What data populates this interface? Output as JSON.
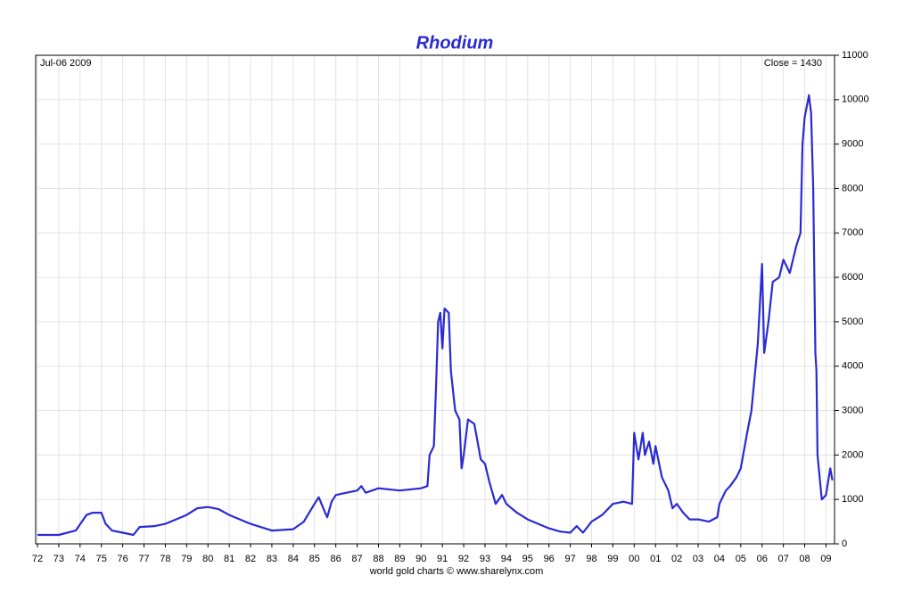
{
  "chart_data": {
    "type": "line",
    "title": "Rhodium",
    "date_label": "Jul-06 2009",
    "close_label": "Close = 1430",
    "footer": "world gold charts © www.sharelynx.com",
    "x": [
      1972,
      1973,
      1973.8,
      1974.3,
      1974.6,
      1975,
      1975.2,
      1975.5,
      1976,
      1976.5,
      1976.8,
      1977.5,
      1978,
      1978.5,
      1979,
      1979.5,
      1980,
      1980.5,
      1981,
      1982,
      1983,
      1984,
      1984.5,
      1985,
      1985.2,
      1985.5,
      1985.6,
      1985.8,
      1986,
      1986.5,
      1987,
      1987.2,
      1987.4,
      1988,
      1989,
      1990,
      1990.3,
      1990.4,
      1990.6,
      1990.7,
      1990.8,
      1990.9,
      1991,
      1991.1,
      1991.3,
      1991.4,
      1991.6,
      1991.8,
      1991.9,
      1992,
      1992.2,
      1992.5,
      1992.8,
      1993,
      1993.2,
      1993.5,
      1993.8,
      1994,
      1994.5,
      1995,
      1995.5,
      1996,
      1996.5,
      1997,
      1997.3,
      1997.6,
      1998,
      1998.5,
      1999,
      1999.5,
      1999.9,
      2000,
      2000.2,
      2000.4,
      2000.5,
      2000.7,
      2000.9,
      2001,
      2001.3,
      2001.6,
      2001.8,
      2002,
      2002.3,
      2002.6,
      2003,
      2003.5,
      2003.9,
      2004,
      2004.3,
      2004.5,
      2004.8,
      2005,
      2005.3,
      2005.5,
      2005.8,
      2006,
      2006.1,
      2006.3,
      2006.5,
      2006.8,
      2007,
      2007.3,
      2007.6,
      2007.8,
      2007.9,
      2008,
      2008.2,
      2008.3,
      2008.4,
      2008.5,
      2008.55,
      2008.6,
      2008.8,
      2009,
      2009.2,
      2009.3
    ],
    "series": [
      {
        "color": "#2a2ad4",
        "values": [
          200,
          200,
          300,
          650,
          700,
          700,
          450,
          300,
          250,
          200,
          380,
          400,
          450,
          550,
          650,
          800,
          830,
          780,
          650,
          450,
          300,
          330,
          500,
          900,
          1050,
          700,
          600,
          950,
          1100,
          1150,
          1200,
          1300,
          1150,
          1250,
          1200,
          1250,
          1300,
          2000,
          2200,
          3500,
          5000,
          5200,
          4400,
          5300,
          5200,
          3900,
          3000,
          2800,
          1700,
          2000,
          2800,
          2700,
          1900,
          1800,
          1400,
          900,
          1100,
          900,
          700,
          550,
          450,
          350,
          280,
          250,
          400,
          250,
          500,
          650,
          900,
          950,
          900,
          2500,
          1900,
          2500,
          2000,
          2300,
          1800,
          2200,
          1500,
          1200,
          800,
          900,
          700,
          550,
          550,
          500,
          600,
          900,
          1200,
          1300,
          1500,
          1700,
          2500,
          3000,
          4500,
          6300,
          4300,
          5000,
          5900,
          6000,
          6400,
          6100,
          6700,
          7000,
          9000,
          9600,
          10100,
          9700,
          8000,
          4300,
          3900,
          2000,
          1000,
          1100,
          1700,
          1430
        ]
      }
    ],
    "xlim": [
      1972,
      2009.4
    ],
    "xticks": [
      {
        "value": 1972,
        "label": "72"
      },
      {
        "value": 1973,
        "label": "73"
      },
      {
        "value": 1974,
        "label": "74"
      },
      {
        "value": 1975,
        "label": "75"
      },
      {
        "value": 1976,
        "label": "76"
      },
      {
        "value": 1977,
        "label": "77"
      },
      {
        "value": 1978,
        "label": "78"
      },
      {
        "value": 1979,
        "label": "79"
      },
      {
        "value": 1980,
        "label": "80"
      },
      {
        "value": 1981,
        "label": "81"
      },
      {
        "value": 1982,
        "label": "82"
      },
      {
        "value": 1983,
        "label": "83"
      },
      {
        "value": 1984,
        "label": "84"
      },
      {
        "value": 1985,
        "label": "85"
      },
      {
        "value": 1986,
        "label": "86"
      },
      {
        "value": 1987,
        "label": "87"
      },
      {
        "value": 1988,
        "label": "88"
      },
      {
        "value": 1989,
        "label": "89"
      },
      {
        "value": 1990,
        "label": "90"
      },
      {
        "value": 1991,
        "label": "91"
      },
      {
        "value": 1992,
        "label": "92"
      },
      {
        "value": 1993,
        "label": "93"
      },
      {
        "value": 1994,
        "label": "94"
      },
      {
        "value": 1995,
        "label": "95"
      },
      {
        "value": 1996,
        "label": "96"
      },
      {
        "value": 1997,
        "label": "97"
      },
      {
        "value": 1998,
        "label": "98"
      },
      {
        "value": 1999,
        "label": "99"
      },
      {
        "value": 2000,
        "label": "00"
      },
      {
        "value": 2001,
        "label": "01"
      },
      {
        "value": 2002,
        "label": "02"
      },
      {
        "value": 2003,
        "label": "03"
      },
      {
        "value": 2004,
        "label": "04"
      },
      {
        "value": 2005,
        "label": "05"
      },
      {
        "value": 2006,
        "label": "06"
      },
      {
        "value": 2007,
        "label": "07"
      },
      {
        "value": 2008,
        "label": "08"
      },
      {
        "value": 2009,
        "label": "09"
      }
    ],
    "ylim": [
      0,
      11000
    ],
    "yticks": [
      0,
      1000,
      2000,
      3000,
      4000,
      5000,
      6000,
      7000,
      8000,
      9000,
      10000,
      11000
    ],
    "grid": true
  }
}
